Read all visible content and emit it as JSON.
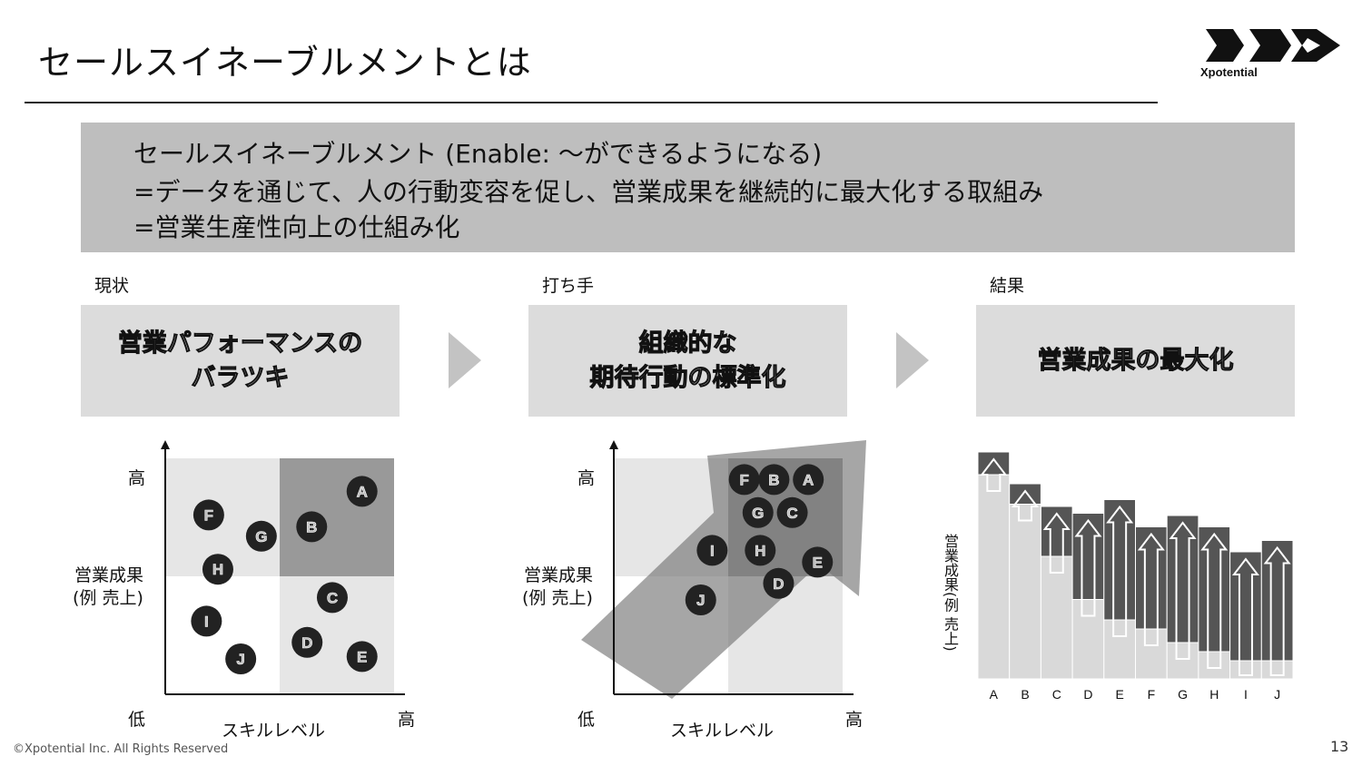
{
  "header": {
    "title": "セールスイネーブルメントとは",
    "logo_text": "Xpotential"
  },
  "definition": {
    "lines": [
      "セールスイネーブルメント (Enable: 〜ができるようになる)",
      "=データを通じて、人の行動変容を促し、営業成果を継続的に最大化する取組み",
      "=営業生産性向上の仕組み化"
    ]
  },
  "stages": [
    {
      "label": "現状",
      "box_text": "営業パフォーマンスの\nバラツキ"
    },
    {
      "label": "打ち手",
      "box_text": "組織的な\n期待行動の標準化"
    },
    {
      "label": "結果",
      "box_text": "営業成果の最大化"
    }
  ],
  "matrix_axes": {
    "y_high": "高",
    "y_label_1": "営業成果",
    "y_label_2": "(例 売上)",
    "origin": "低",
    "x_high": "高",
    "x_label": "スキルレベル"
  },
  "chart_data": [
    {
      "type": "scatter",
      "title": "現状",
      "xlabel": "スキルレベル",
      "ylabel": "営業成果 (例 売上)",
      "points": [
        {
          "label": "A",
          "x": 0.86,
          "y": 0.86
        },
        {
          "label": "B",
          "x": 0.64,
          "y": 0.71
        },
        {
          "label": "C",
          "x": 0.73,
          "y": 0.41
        },
        {
          "label": "D",
          "x": 0.62,
          "y": 0.22
        },
        {
          "label": "E",
          "x": 0.86,
          "y": 0.16
        },
        {
          "label": "F",
          "x": 0.19,
          "y": 0.76
        },
        {
          "label": "G",
          "x": 0.42,
          "y": 0.67
        },
        {
          "label": "H",
          "x": 0.23,
          "y": 0.53
        },
        {
          "label": "I",
          "x": 0.18,
          "y": 0.31
        },
        {
          "label": "J",
          "x": 0.33,
          "y": 0.15
        }
      ]
    },
    {
      "type": "scatter",
      "title": "打ち手",
      "xlabel": "スキルレベル",
      "ylabel": "営業成果 (例 売上)",
      "points": [
        {
          "label": "F",
          "x": 0.57,
          "y": 0.91
        },
        {
          "label": "B",
          "x": 0.7,
          "y": 0.91
        },
        {
          "label": "A",
          "x": 0.85,
          "y": 0.91
        },
        {
          "label": "G",
          "x": 0.63,
          "y": 0.77
        },
        {
          "label": "C",
          "x": 0.78,
          "y": 0.77
        },
        {
          "label": "I",
          "x": 0.43,
          "y": 0.61
        },
        {
          "label": "H",
          "x": 0.64,
          "y": 0.61
        },
        {
          "label": "E",
          "x": 0.89,
          "y": 0.56
        },
        {
          "label": "D",
          "x": 0.72,
          "y": 0.47
        },
        {
          "label": "J",
          "x": 0.38,
          "y": 0.4
        }
      ]
    },
    {
      "type": "bar",
      "title": "結果",
      "ylabel": "営業成果(例 売上)",
      "categories": [
        "A",
        "B",
        "C",
        "D",
        "E",
        "F",
        "G",
        "H",
        "I",
        "J"
      ],
      "series": [
        {
          "values": [
            90,
            77,
            54,
            35,
            26,
            22,
            16,
            12,
            8,
            8
          ]
        },
        {
          "values": [
            100,
            86,
            76,
            73,
            79,
            67,
            72,
            67,
            56,
            61
          ]
        }
      ],
      "ylim": [
        0,
        100
      ]
    }
  ],
  "colors": {
    "definition_bg": "#bebebe",
    "stage_bg": "#dcdcdc",
    "quadrant_light": "#e6e6e6",
    "quadrant_dark": "#999999",
    "dot": "#222222",
    "bar_light": "#d9d9d9",
    "bar_dark": "#555555"
  },
  "footer": {
    "copyright": "©Xpotential Inc. All Rights Reserved",
    "page_number": "13"
  }
}
